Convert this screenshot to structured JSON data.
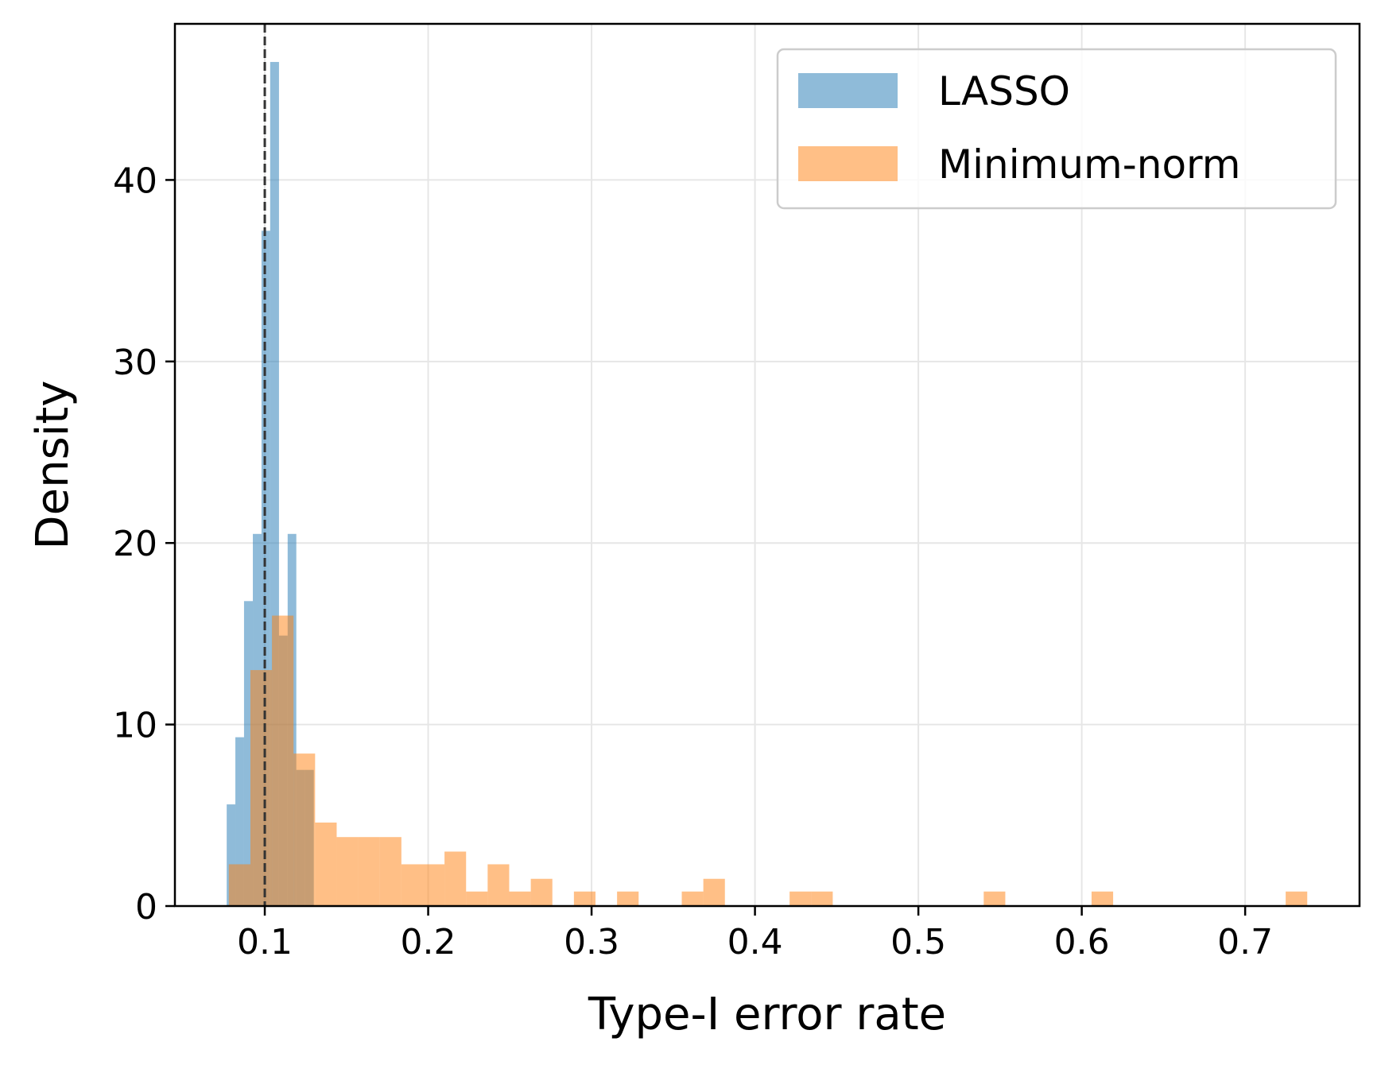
{
  "chart_data": {
    "type": "histogram",
    "xlabel": "Type-I error rate",
    "ylabel": "Density",
    "xlim": [
      0.045,
      0.77
    ],
    "ylim": [
      0,
      48.6
    ],
    "xticks": [
      0.1,
      0.2,
      0.3,
      0.4,
      0.5,
      0.6,
      0.7
    ],
    "xtick_labels": [
      "0.1",
      "0.2",
      "0.3",
      "0.4",
      "0.5",
      "0.6",
      "0.7"
    ],
    "yticks": [
      0,
      10,
      20,
      30,
      40
    ],
    "ytick_labels": [
      "0",
      "10",
      "20",
      "30",
      "40"
    ],
    "grid": true,
    "legend_position": "top-right",
    "reference_line": {
      "x": 0.1,
      "style": "dashed",
      "color": "#333333"
    },
    "series": [
      {
        "name": "LASSO",
        "color": "#1f77b4",
        "opacity": 0.5,
        "bins": [
          [
            0.0767,
            0.082,
            5.6
          ],
          [
            0.082,
            0.0873,
            9.3
          ],
          [
            0.0873,
            0.0927,
            16.8
          ],
          [
            0.0927,
            0.098,
            20.5
          ],
          [
            0.098,
            0.1033,
            37.2
          ],
          [
            0.1033,
            0.1087,
            46.5
          ],
          [
            0.1087,
            0.114,
            14.9
          ],
          [
            0.114,
            0.1193,
            20.5
          ],
          [
            0.1193,
            0.1247,
            7.5
          ],
          [
            0.1247,
            0.13,
            7.5
          ]
        ]
      },
      {
        "name": "Minimum-norm",
        "color": "#ff7f0e",
        "opacity": 0.5,
        "bins": [
          [
            0.078,
            0.0912,
            2.3
          ],
          [
            0.0912,
            0.1044,
            13.0
          ],
          [
            0.1044,
            0.1176,
            16.0
          ],
          [
            0.1176,
            0.1308,
            8.4
          ],
          [
            0.1308,
            0.144,
            4.6
          ],
          [
            0.144,
            0.1572,
            3.8
          ],
          [
            0.1572,
            0.1704,
            3.8
          ],
          [
            0.1704,
            0.1836,
            3.8
          ],
          [
            0.1836,
            0.1968,
            2.3
          ],
          [
            0.1968,
            0.21,
            2.3
          ],
          [
            0.21,
            0.2232,
            3.0
          ],
          [
            0.2232,
            0.2364,
            0.8
          ],
          [
            0.2364,
            0.2496,
            2.3
          ],
          [
            0.2496,
            0.2628,
            0.8
          ],
          [
            0.2628,
            0.276,
            1.5
          ],
          [
            0.2892,
            0.3024,
            0.8
          ],
          [
            0.3156,
            0.3288,
            0.8
          ],
          [
            0.3552,
            0.3684,
            0.8
          ],
          [
            0.3684,
            0.3816,
            1.5
          ],
          [
            0.4212,
            0.4344,
            0.8
          ],
          [
            0.4344,
            0.4476,
            0.8
          ],
          [
            0.54,
            0.5532,
            0.8
          ],
          [
            0.606,
            0.6192,
            0.8
          ],
          [
            0.7248,
            0.738,
            0.8
          ]
        ]
      }
    ]
  }
}
